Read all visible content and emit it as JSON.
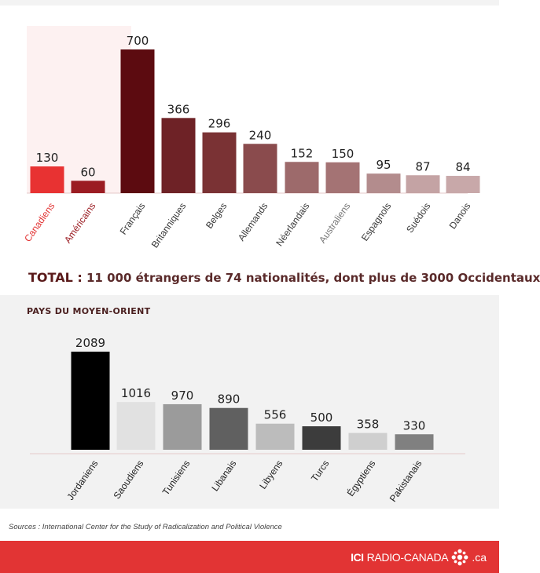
{
  "total": {
    "label": "TOTAL :",
    "text": "11 000 étrangers de 74 nationalités, dont plus de 3000 Occidentaux"
  },
  "middle_east_title": "PAYS DU MOYEN-ORIENT",
  "sources": {
    "label": "Sources :",
    "text": "International Center for the Study of Radicalization and Political Violence"
  },
  "brand": {
    "ici": "ICI",
    "name": "RADIO-CANADA",
    "tld": ".ca",
    "logo_icon": "radio-canada-gem-icon"
  },
  "colors": {
    "footer": "#e23434",
    "highlight_panel": "#fdf1f1",
    "canada_label": "#e23434",
    "usa_label": "#9b1c22"
  },
  "chart_data": [
    {
      "type": "bar",
      "title": "",
      "categories": [
        "Canadiens",
        "Américains",
        "Français",
        "Britanniques",
        "Belges",
        "Allemands",
        "Néerlandais",
        "Australiens",
        "Espagnols",
        "Suédois",
        "Danois"
      ],
      "values": [
        130,
        60,
        700,
        366,
        296,
        240,
        152,
        150,
        95,
        87,
        84
      ],
      "colors": [
        "#e83232",
        "#9b1c22",
        "#5c0b10",
        "#6e2226",
        "#7a3234",
        "#8a4b4d",
        "#9d6a6b",
        "#a47374",
        "#b38c8d",
        "#c4a3a4",
        "#c8a8a9"
      ],
      "label_colors": [
        "#e23434",
        "#9b1c22",
        "#3a3a3a",
        "#3a3a3a",
        "#3a3a3a",
        "#3a3a3a",
        "#3a3a3a",
        "#777777",
        "#3a3a3a",
        "#3a3a3a",
        "#3a3a3a"
      ],
      "highlighted": [
        "Canadiens",
        "Américains"
      ],
      "ylim": [
        0,
        700
      ],
      "grid": false,
      "xlabel": "",
      "ylabel": ""
    },
    {
      "type": "bar",
      "title": "PAYS DU MOYEN-ORIENT",
      "categories": [
        "Jordaniens",
        "Saoudiens",
        "Tunisiens",
        "Libanais",
        "Libyens",
        "Turcs",
        "Égyptiens",
        "Pakistanais"
      ],
      "values": [
        2089,
        1016,
        970,
        890,
        556,
        500,
        358,
        330
      ],
      "colors": [
        "#000000",
        "#e1e1e1",
        "#9b9b9b",
        "#606060",
        "#bcbcbc",
        "#3c3c3c",
        "#cfcfcf",
        "#808080"
      ],
      "ylim": [
        0,
        2089
      ],
      "grid": false,
      "xlabel": "",
      "ylabel": ""
    }
  ]
}
